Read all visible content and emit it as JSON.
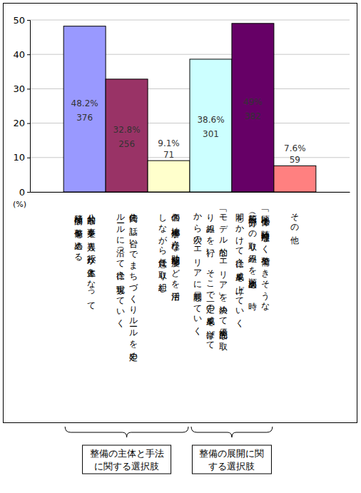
{
  "chart_data": {
    "type": "bar",
    "y_label": "(%)",
    "categories": [
      "公共的な事業を導入し行政が主体となって積極的な整備を進める",
      "住民の話し合いでまちづくりルールを定めルールに沿って徐々に実現していく",
      "個々の地権者が様々な助成制度などを活用しながら任意に取り組む",
      "「モデル的なエリア」を決めて優先的な取り組みを行い、そこで一定の成果を挙げてから次のエリアに展開していく",
      "「地区全体で随時無理なく整備できそうな箇所（部分）への取り組みを順次進め、時間をかけて徐々に成果を上げていく",
      "その他"
    ],
    "values": [
      48.2,
      32.8,
      9.1,
      38.6,
      49,
      7.6
    ],
    "value_labels": [
      "48.2%",
      "32.8%",
      "9.1%",
      "38.6%",
      "49%",
      "7.6%"
    ],
    "counts": [
      376,
      256,
      71,
      301,
      382,
      59
    ],
    "colors": [
      "#9999ff",
      "#993366",
      "#ffffcc",
      "#ccffff",
      "#660066",
      "#ff8080"
    ],
    "ylim": [
      0,
      50
    ],
    "yticks": [
      0,
      10,
      20,
      30,
      40,
      50
    ],
    "grid": true,
    "data_labels": true,
    "groups": [
      {
        "label": [
          "整備の主体と手法",
          "に関する選択肢"
        ],
        "span": [
          0,
          2
        ]
      },
      {
        "label": [
          "整備の展開に関",
          "する選択肢"
        ],
        "span": [
          3,
          4
        ]
      }
    ]
  }
}
